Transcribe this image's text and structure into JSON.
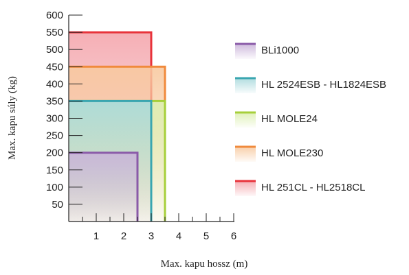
{
  "chart_data": {
    "type": "area",
    "xlabel": "Max. kapu hossz (m)",
    "ylabel": "Max. kapu súly (kg)",
    "xlim": [
      0,
      6
    ],
    "ylim": [
      0,
      600
    ],
    "x_ticks": [
      "1",
      "2",
      "3",
      "4",
      "5",
      "6"
    ],
    "y_ticks": [
      "50",
      "100",
      "150",
      "200",
      "250",
      "300",
      "350",
      "400",
      "450",
      "500",
      "550",
      "600"
    ],
    "grid": false,
    "legend_position": "right",
    "series": [
      {
        "name": "HL 251CL - HL2518CL",
        "max_length_m": 3.0,
        "max_weight_kg": 550,
        "color": "#e8333b",
        "fill": "#f4a6ad"
      },
      {
        "name": "HL MOLE230",
        "max_length_m": 3.5,
        "max_weight_kg": 450,
        "color": "#f08a3c",
        "fill": "#f8c9a0"
      },
      {
        "name": "HL MOLE24",
        "max_length_m": 3.5,
        "max_weight_kg": 350,
        "color": "#a6cf3a",
        "fill": "#dcefb0"
      },
      {
        "name": "HL 2524ESB - HL1824ESB",
        "max_length_m": 3.0,
        "max_weight_kg": 350,
        "color": "#3aa6b0",
        "fill": "#a9d9dc"
      },
      {
        "name": "BLi1000",
        "max_length_m": 2.5,
        "max_weight_kg": 200,
        "color": "#8a5aa8",
        "fill": "#c9b3d9"
      }
    ],
    "legend_order": [
      "BLi1000",
      "HL 2524ESB - HL1824ESB",
      "HL MOLE24",
      "HL MOLE230",
      "HL 251CL - HL2518CL"
    ]
  }
}
